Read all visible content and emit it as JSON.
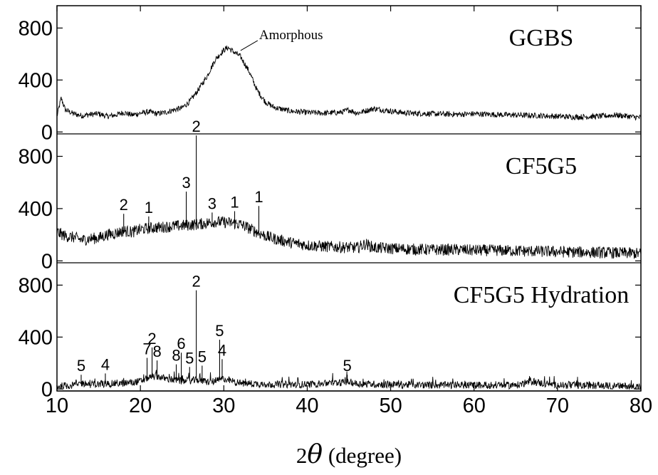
{
  "chart_data": {
    "type": "line",
    "xlabel": {
      "prefix": "2",
      "symbol": "θ",
      "suffix": " (degree)"
    },
    "xlim": [
      10,
      80
    ],
    "x_ticks": [
      10,
      20,
      30,
      40,
      50,
      60,
      70,
      80
    ],
    "panels": [
      {
        "name": "GGBS",
        "ylim": [
          0,
          950
        ],
        "y_ticks": [
          0,
          400,
          800
        ],
        "curve": [
          [
            10,
            120
          ],
          [
            10.5,
            260
          ],
          [
            11,
            170
          ],
          [
            12,
            140
          ],
          [
            13,
            125
          ],
          [
            14,
            135
          ],
          [
            15,
            140
          ],
          [
            16,
            120
          ],
          [
            17,
            130
          ],
          [
            18,
            150
          ],
          [
            19,
            130
          ],
          [
            20,
            145
          ],
          [
            21,
            155
          ],
          [
            22,
            140
          ],
          [
            23,
            150
          ],
          [
            24,
            170
          ],
          [
            25,
            185
          ],
          [
            26,
            240
          ],
          [
            27,
            330
          ],
          [
            28,
            430
          ],
          [
            29,
            560
          ],
          [
            30,
            630
          ],
          [
            30.5,
            650
          ],
          [
            31,
            625
          ],
          [
            32,
            580
          ],
          [
            33,
            470
          ],
          [
            34,
            320
          ],
          [
            35,
            230
          ],
          [
            36,
            190
          ],
          [
            37,
            175
          ],
          [
            38,
            160
          ],
          [
            40,
            150
          ],
          [
            42,
            145
          ],
          [
            44,
            150
          ],
          [
            45,
            170
          ],
          [
            46,
            145
          ],
          [
            48,
            180
          ],
          [
            50,
            160
          ],
          [
            52,
            145
          ],
          [
            55,
            140
          ],
          [
            58,
            135
          ],
          [
            60,
            140
          ],
          [
            62,
            135
          ],
          [
            65,
            130
          ],
          [
            68,
            125
          ],
          [
            70,
            120
          ],
          [
            72,
            115
          ],
          [
            75,
            120
          ],
          [
            77,
            130
          ],
          [
            80,
            110
          ]
        ],
        "annotations": [
          {
            "text": "Amorphous",
            "x": 31.5,
            "y": 660
          }
        ]
      },
      {
        "name": "CF5G5",
        "ylim": [
          0,
          950
        ],
        "y_ticks": [
          0,
          400,
          800
        ],
        "curve": [
          [
            10,
            220
          ],
          [
            11,
            190
          ],
          [
            12,
            180
          ],
          [
            13,
            160
          ],
          [
            14,
            170
          ],
          [
            15,
            175
          ],
          [
            16,
            200
          ],
          [
            17,
            210
          ],
          [
            18,
            230
          ],
          [
            19,
            220
          ],
          [
            20,
            240
          ],
          [
            21,
            250
          ],
          [
            22,
            255
          ],
          [
            23,
            260
          ],
          [
            24,
            265
          ],
          [
            25,
            270
          ],
          [
            26,
            275
          ],
          [
            27,
            280
          ],
          [
            28,
            290
          ],
          [
            29,
            300
          ],
          [
            30,
            295
          ],
          [
            31,
            290
          ],
          [
            32,
            280
          ],
          [
            33,
            250
          ],
          [
            34,
            220
          ],
          [
            35,
            190
          ],
          [
            36,
            170
          ],
          [
            38,
            140
          ],
          [
            40,
            120
          ],
          [
            42,
            110
          ],
          [
            44,
            105
          ],
          [
            46,
            100
          ],
          [
            47,
            130
          ],
          [
            48,
            100
          ],
          [
            50,
            95
          ],
          [
            52,
            90
          ],
          [
            55,
            85
          ],
          [
            58,
            85
          ],
          [
            60,
            80
          ],
          [
            63,
            80
          ],
          [
            66,
            75
          ],
          [
            70,
            70
          ],
          [
            74,
            65
          ],
          [
            78,
            60
          ],
          [
            80,
            55
          ]
        ],
        "peaks": [
          {
            "x": 18.0,
            "y": 360,
            "label": "2"
          },
          {
            "x": 21.0,
            "y": 340,
            "label": "1"
          },
          {
            "x": 25.5,
            "y": 530,
            "label": "3"
          },
          {
            "x": 26.7,
            "y": 960,
            "label": "2"
          },
          {
            "x": 28.6,
            "y": 370,
            "label": "3"
          },
          {
            "x": 31.3,
            "y": 380,
            "label": "1"
          },
          {
            "x": 34.2,
            "y": 420,
            "label": "1"
          }
        ]
      },
      {
        "name": "CF5G5 Hydration",
        "ylim": [
          0,
          950
        ],
        "y_ticks": [
          0,
          400,
          800
        ],
        "curve": [
          [
            10,
            20
          ],
          [
            12,
            30
          ],
          [
            13,
            45
          ],
          [
            14,
            35
          ],
          [
            16,
            40
          ],
          [
            18,
            45
          ],
          [
            20,
            60
          ],
          [
            21,
            90
          ],
          [
            22,
            100
          ],
          [
            23,
            80
          ],
          [
            24,
            70
          ],
          [
            25,
            60
          ],
          [
            26,
            65
          ],
          [
            27,
            70
          ],
          [
            28,
            55
          ],
          [
            29,
            60
          ],
          [
            30,
            80
          ],
          [
            31,
            60
          ],
          [
            32,
            45
          ],
          [
            34,
            40
          ],
          [
            36,
            35
          ],
          [
            40,
            35
          ],
          [
            44,
            50
          ],
          [
            45,
            55
          ],
          [
            46,
            40
          ],
          [
            50,
            35
          ],
          [
            55,
            30
          ],
          [
            60,
            30
          ],
          [
            65,
            28
          ],
          [
            67,
            60
          ],
          [
            68,
            45
          ],
          [
            70,
            30
          ],
          [
            75,
            25
          ],
          [
            80,
            20
          ]
        ],
        "peaks": [
          {
            "x": 12.9,
            "y": 110,
            "label": "5"
          },
          {
            "x": 15.8,
            "y": 120,
            "label": "4"
          },
          {
            "x": 20.8,
            "y": 240,
            "label": "7"
          },
          {
            "x": 21.4,
            "y": 320,
            "label": "2"
          },
          {
            "x": 22.0,
            "y": 220,
            "label": "8"
          },
          {
            "x": 24.3,
            "y": 190,
            "label": "8"
          },
          {
            "x": 24.9,
            "y": 280,
            "label": "6"
          },
          {
            "x": 25.9,
            "y": 170,
            "label": "5"
          },
          {
            "x": 26.7,
            "y": 760,
            "label": "2"
          },
          {
            "x": 27.4,
            "y": 180,
            "label": "5"
          },
          {
            "x": 29.5,
            "y": 380,
            "label": "5"
          },
          {
            "x": 29.8,
            "y": 230,
            "label": "4"
          },
          {
            "x": 44.8,
            "y": 110,
            "label": "5"
          }
        ]
      }
    ]
  }
}
